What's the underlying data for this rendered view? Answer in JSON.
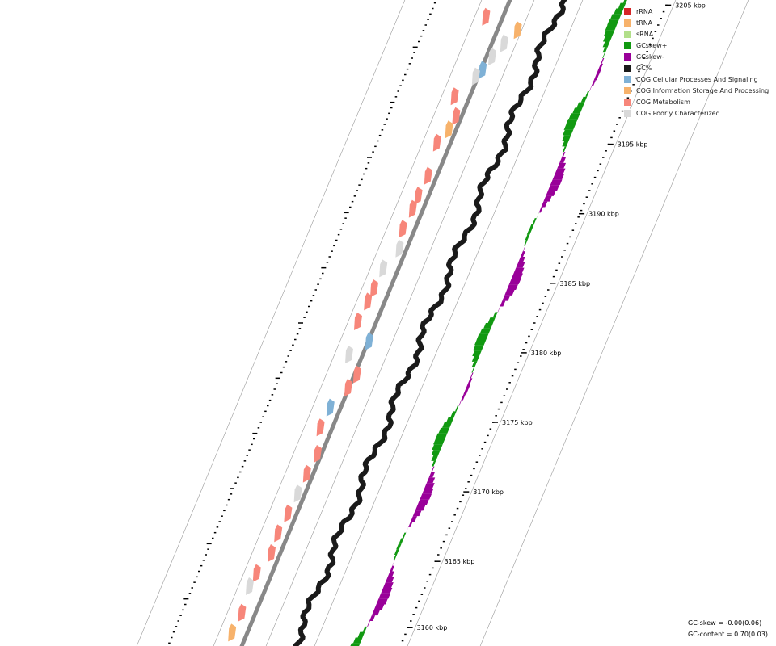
{
  "legend": [
    {
      "label": "rRNA",
      "color": "#d62728"
    },
    {
      "label": "tRNA",
      "color": "#f7b26b"
    },
    {
      "label": "sRNA",
      "color": "#b2df8a"
    },
    {
      "label": "GCskew+",
      "color": "#119911"
    },
    {
      "label": "GCskew-",
      "color": "#990099"
    },
    {
      "label": "GC%",
      "color": "#1a1a1a"
    },
    {
      "label": "COG Cellular Processes And Signaling",
      "color": "#7fb1d6"
    },
    {
      "label": "COG Information Storage And Processing",
      "color": "#f7b26b"
    },
    {
      "label": "COG Metabolism",
      "color": "#f7867a"
    },
    {
      "label": "COG Poorly Characterized",
      "color": "#d9d9d9"
    }
  ],
  "ticks": [
    {
      "label": "3160 kbp"
    },
    {
      "label": "3165 kbp"
    },
    {
      "label": "3170 kbp"
    },
    {
      "label": "3175 kbp"
    },
    {
      "label": "3180 kbp"
    },
    {
      "label": "3185 kbp"
    },
    {
      "label": "3190 kbp"
    },
    {
      "label": "3195 kbp"
    },
    {
      "label": "3205 kbp"
    }
  ],
  "stats": {
    "gc_skew": "GC-skew = -0.00(0.06)",
    "gc_content": "GC-content = 0.70(0.03)"
  },
  "colors": {
    "gc_content": "#1a1a1a",
    "skew_plus": "#119911",
    "skew_minus": "#990099",
    "backbone": "#888888",
    "track_line": "#999999",
    "cog_metabolism": "#f7867a",
    "cog_info": "#f7b26b",
    "cog_cellular": "#7fb1d6",
    "cog_poor": "#d9d9d9"
  }
}
